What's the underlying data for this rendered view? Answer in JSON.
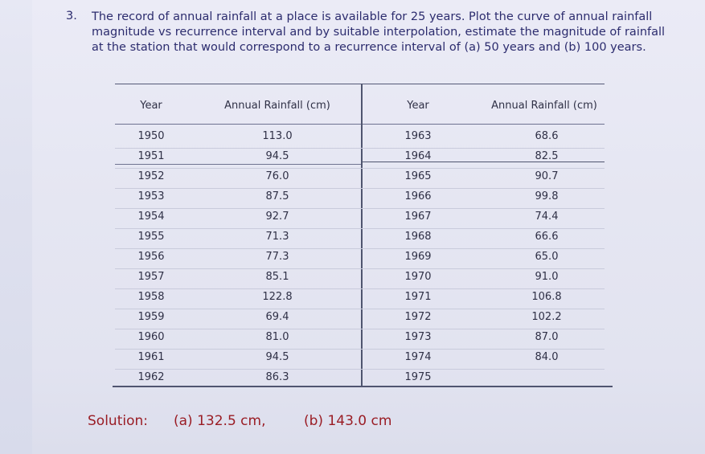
{
  "question": {
    "number": "3.",
    "text": "The record of annual rainfall at a place is available for 25 years. Plot the curve of annual rainfall magnitude vs recurrence interval and by suitable interpolation, estimate the magnitude of rainfall at the station that would correspond to a recurrence interval of (a) 50 years and (b) 100 years."
  },
  "table": {
    "headers": [
      "Year",
      "Annual Rainfall (cm)",
      "Year",
      "Annual Rainfall (cm)"
    ],
    "left_rows": [
      {
        "year": "1950",
        "rain": "113.0"
      },
      {
        "year": "1951",
        "rain": "94.5"
      },
      {
        "year": "1952",
        "rain": "76.0"
      },
      {
        "year": "1953",
        "rain": "87.5"
      },
      {
        "year": "1954",
        "rain": "92.7"
      },
      {
        "year": "1955",
        "rain": "71.3"
      },
      {
        "year": "1956",
        "rain": "77.3"
      },
      {
        "year": "1957",
        "rain": "85.1"
      },
      {
        "year": "1958",
        "rain": "122.8"
      },
      {
        "year": "1959",
        "rain": "69.4"
      },
      {
        "year": "1960",
        "rain": "81.0"
      },
      {
        "year": "1961",
        "rain": "94.5"
      },
      {
        "year": "1962",
        "rain": "86.3"
      }
    ],
    "right_rows": [
      {
        "year": "1963",
        "rain": "68.6"
      },
      {
        "year": "1964",
        "rain": "82.5"
      },
      {
        "year": "1965",
        "rain": "90.7"
      },
      {
        "year": "1966",
        "rain": "99.8"
      },
      {
        "year": "1967",
        "rain": "74.4"
      },
      {
        "year": "1968",
        "rain": "66.6"
      },
      {
        "year": "1969",
        "rain": "65.0"
      },
      {
        "year": "1970",
        "rain": "91.0"
      },
      {
        "year": "1971",
        "rain": "106.8"
      },
      {
        "year": "1972",
        "rain": "102.2"
      },
      {
        "year": "1973",
        "rain": "87.0"
      },
      {
        "year": "1974",
        "rain": "84.0"
      },
      {
        "year": "1975",
        "rain": ""
      }
    ]
  },
  "solution": {
    "label": "Solution:",
    "a": "(a) 132.5 cm,",
    "b": "(b) 143.0 cm"
  },
  "colors": {
    "text": "#2c2c6e",
    "solution": "#9a1d25"
  }
}
